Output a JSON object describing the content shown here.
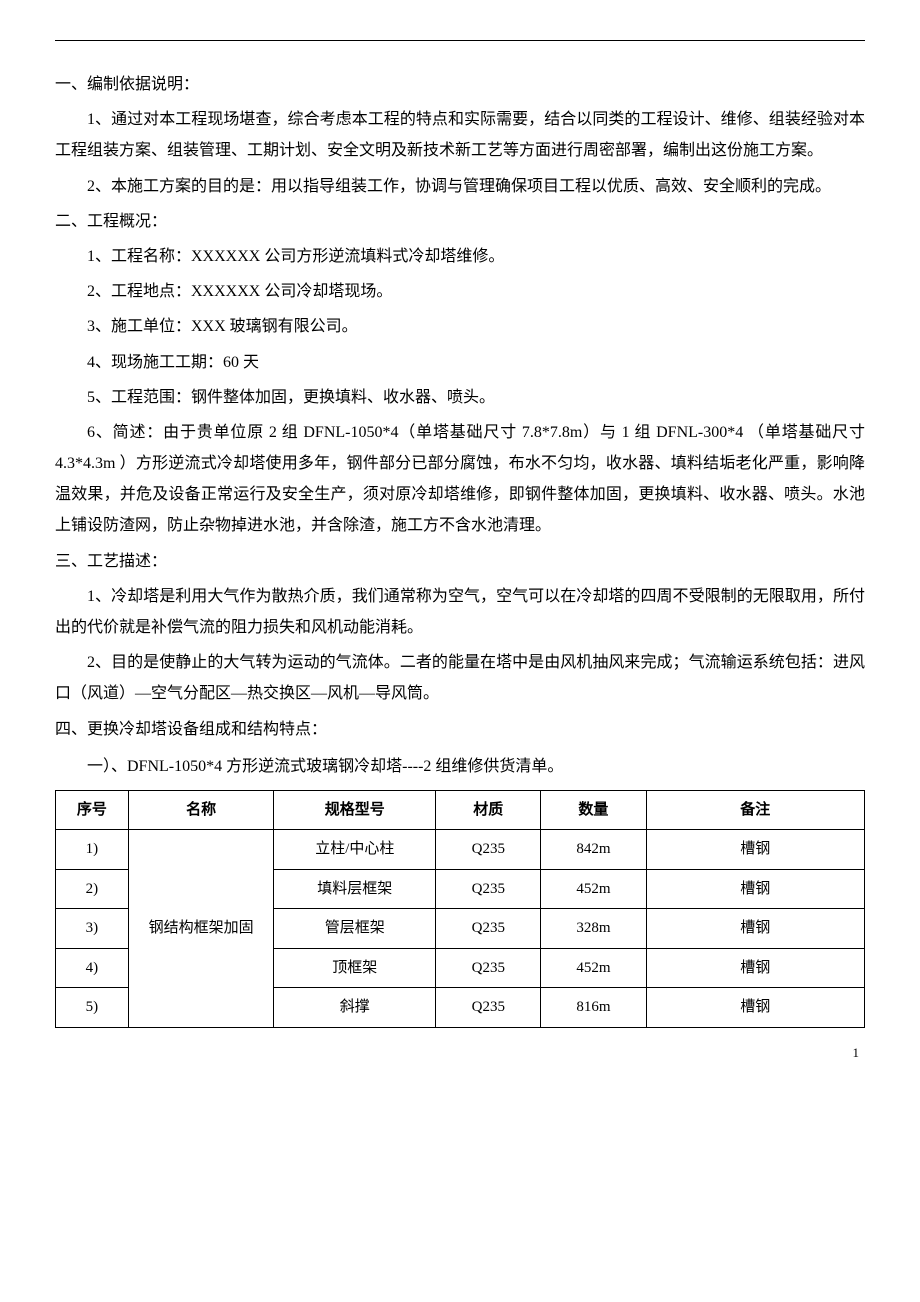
{
  "sections": {
    "s1_title": "一、编制依据说明：",
    "s1_p1": "1、通过对本工程现场堪查，综合考虑本工程的特点和实际需要，结合以同类的工程设计、维修、组装经验对本工程组装方案、组装管理、工期计划、安全文明及新技术新工艺等方面进行周密部署，编制出这份施工方案。",
    "s1_p2": "2、本施工方案的目的是：用以指导组装工作，协调与管理确保项目工程以优质、高效、安全顺利的完成。",
    "s2_title": "二、工程概况：",
    "s2_i1": "1、工程名称：XXXXXX 公司方形逆流填料式冷却塔维修。",
    "s2_i2": "2、工程地点：XXXXXX 公司冷却塔现场。",
    "s2_i3": "3、施工单位：XXX 玻璃钢有限公司。",
    "s2_i4": "4、现场施工工期：60 天",
    "s2_i5": "5、工程范围：钢件整体加固，更换填料、收水器、喷头。",
    "s2_i6": "6、简述：由于贵单位原 2 组 DFNL-1050*4（单塔基础尺寸 7.8*7.8m）与 1 组 DFNL-300*4 （单塔基础尺寸 4.3*4.3m ）方形逆流式冷却塔使用多年，钢件部分已部分腐蚀，布水不匀均，收水器、填料结垢老化严重，影响降温效果，并危及设备正常运行及安全生产，须对原冷却塔维修，即钢件整体加固，更换填料、收水器、喷头。水池上铺设防渣网，防止杂物掉进水池，并含除渣，施工方不含水池清理。",
    "s3_title": "三、工艺描述：",
    "s3_p1": "1、冷却塔是利用大气作为散热介质，我们通常称为空气，空气可以在冷却塔的四周不受限制的无限取用，所付出的代价就是补偿气流的阻力损失和风机动能消耗。",
    "s3_p2": "2、目的是使静止的大气转为运动的气流体。二者的能量在塔中是由风机抽风来完成；气流输运系统包括：进风口（风道）—空气分配区—热交换区—风机—导风筒。",
    "s4_title": "四、更换冷却塔设备组成和结构特点：",
    "s4_sub1": "一）、DFNL-1050*4 方形逆流式玻璃钢冷却塔----2 组维修供货清单。"
  },
  "table": {
    "headers": [
      "序号",
      "名称",
      "规格型号",
      "材质",
      "数量",
      "备注"
    ],
    "merged_name": "钢结构框架加固",
    "rows": [
      {
        "seq": "1)",
        "spec": "立柱/中心柱",
        "mat": "Q235",
        "qty": "842m",
        "note": "槽钢"
      },
      {
        "seq": "2)",
        "spec": "填料层框架",
        "mat": "Q235",
        "qty": "452m",
        "note": "槽钢"
      },
      {
        "seq": "3)",
        "spec": "管层框架",
        "mat": "Q235",
        "qty": "328m",
        "note": "槽钢"
      },
      {
        "seq": "4)",
        "spec": "顶框架",
        "mat": "Q235",
        "qty": "452m",
        "note": "槽钢"
      },
      {
        "seq": "5)",
        "spec": "斜撑",
        "mat": "Q235",
        "qty": "816m",
        "note": "槽钢"
      }
    ]
  },
  "page_number": "1"
}
